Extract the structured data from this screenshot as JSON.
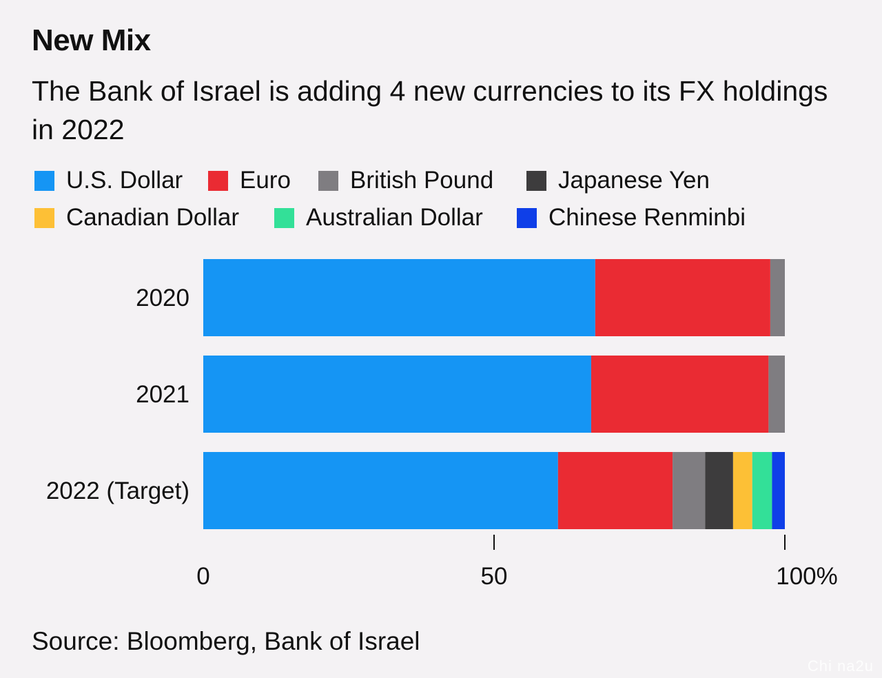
{
  "title": "New Mix",
  "subtitle": "The Bank of Israel is adding 4 new currencies to its FX holdings in 2022",
  "source": "Source: Bloomberg, Bank of Israel",
  "watermark": "Chi na2u",
  "chart_data": {
    "type": "bar",
    "orientation": "horizontal",
    "stacked": true,
    "categories": [
      "2020",
      "2021",
      "2022 (Target)"
    ],
    "series": [
      {
        "name": "U.S. Dollar",
        "color": "#1595f4",
        "values": [
          67.4,
          66.7,
          61.0
        ]
      },
      {
        "name": "Euro",
        "color": "#ea2b33",
        "values": [
          30.1,
          30.5,
          19.7
        ]
      },
      {
        "name": "British Pound",
        "color": "#7f7d81",
        "values": [
          2.5,
          2.8,
          5.6
        ]
      },
      {
        "name": "Japanese Yen",
        "color": "#3d3c3d",
        "values": [
          0,
          0,
          4.8
        ]
      },
      {
        "name": "Canadian Dollar",
        "color": "#fdc036",
        "values": [
          0,
          0,
          3.3
        ]
      },
      {
        "name": "Australian Dollar",
        "color": "#33e098",
        "values": [
          0,
          0,
          3.4
        ]
      },
      {
        "name": "Chinese Renminbi",
        "color": "#0f3fe8",
        "values": [
          0,
          0,
          2.2
        ]
      }
    ],
    "x_ticks": [
      "0",
      "50",
      "100%"
    ],
    "xlim": [
      0,
      100
    ],
    "grid": false,
    "legend_position": "top"
  }
}
